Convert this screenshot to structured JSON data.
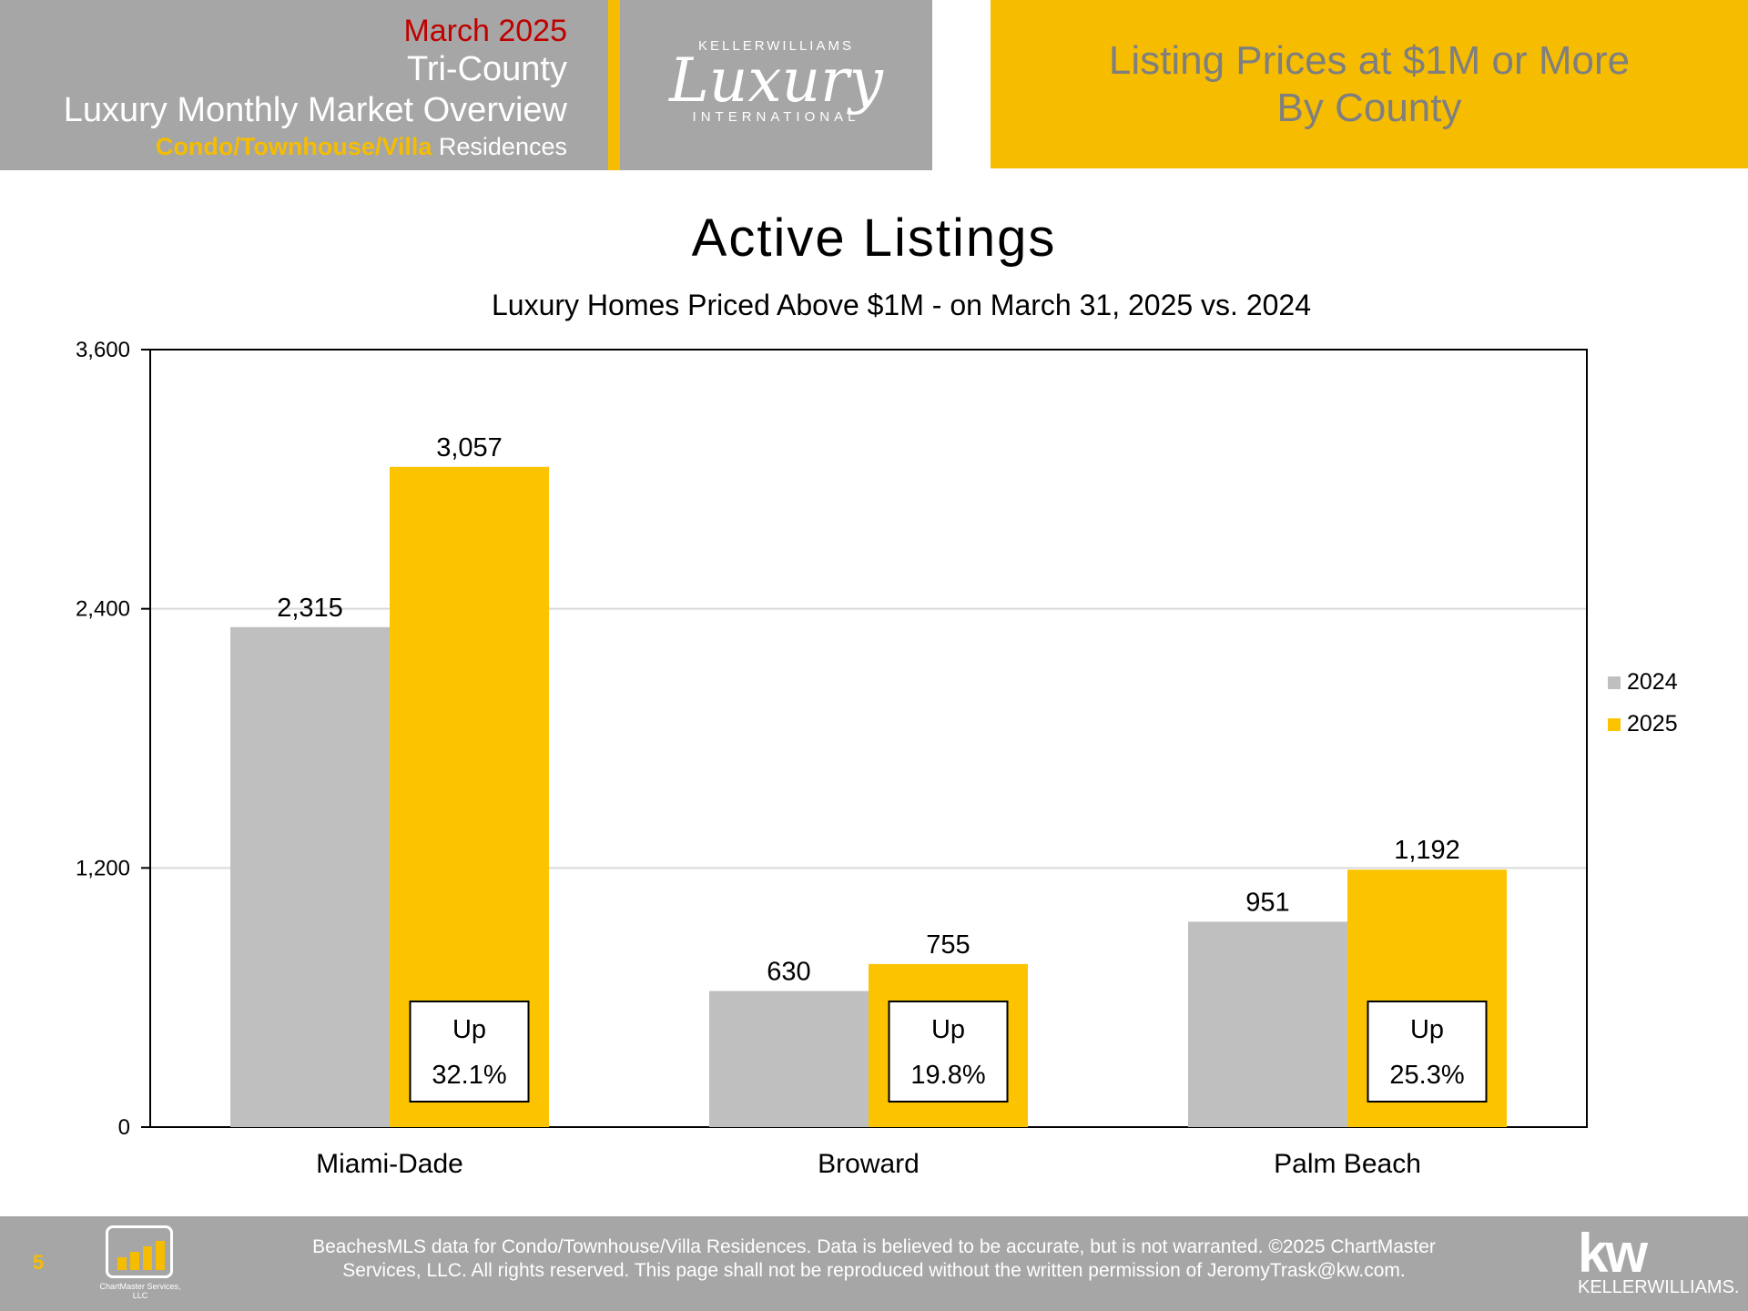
{
  "header": {
    "date": "March 2025",
    "region": "Tri-County",
    "report": "Luxury Monthly Market Overview",
    "segment_highlight": "Condo/Townhouse/Villa",
    "segment_rest": " Residences",
    "logo_top": "KELLERWILLIAMS",
    "logo_script": "Luxury",
    "logo_bottom": "INTERNATIONAL",
    "right_line1": "Listing Prices at $1M or More",
    "right_line2": "By County"
  },
  "colors": {
    "gold": "#f6bd00",
    "bar_2025": "#fcc400",
    "bar_2024": "#bfbfbf",
    "header_gray": "#a6a6a6",
    "date_red": "#c00000"
  },
  "chart_data": {
    "type": "bar",
    "title": "Active Listings",
    "subtitle": "Luxury Homes Priced Above $1M - on March 31,  2025 vs. 2024",
    "categories": [
      "Miami-Dade",
      "Broward",
      "Palm Beach"
    ],
    "series": [
      {
        "name": "2024",
        "values": [
          2315,
          630,
          951
        ],
        "color": "#bfbfbf"
      },
      {
        "name": "2025",
        "values": [
          3057,
          755,
          1192
        ],
        "color": "#fcc400"
      }
    ],
    "data_labels": [
      [
        "2,315",
        "630",
        "951"
      ],
      [
        "3,057",
        "755",
        "1,192"
      ]
    ],
    "annotations": [
      {
        "line1": "Up",
        "line2": "32.1%"
      },
      {
        "line1": "Up",
        "line2": "19.8%"
      },
      {
        "line1": "Up",
        "line2": "25.3%"
      }
    ],
    "ylim": [
      0,
      3600
    ],
    "yticks": [
      0,
      1200,
      2400,
      3600
    ],
    "ytick_labels": [
      "0",
      "1,200",
      "2,400",
      "3,600"
    ],
    "grid": true,
    "legend": "right"
  },
  "footer": {
    "page_number": "5",
    "chartmaster_name": "ChartMaster Services, LLC",
    "disclaimer_line1": "BeachesMLS data for Condo/Townhouse/Villa Residences.  Data is believed to be accurate, but is not warranted.   ©2025  ChartMaster",
    "disclaimer_line2": "Services, LLC.  All rights reserved. This page shall not be reproduced without the written permission of JeromyTrask@kw.com.",
    "kw_logo": "kw",
    "kw_name": "KELLERWILLIAMS."
  }
}
